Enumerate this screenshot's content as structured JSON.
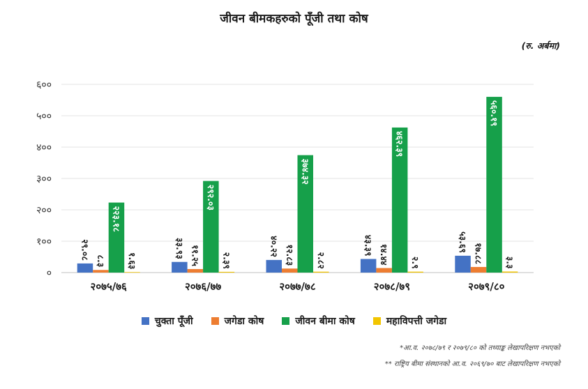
{
  "title": "जीवन बीमकहरुको पूँजी तथा कोष",
  "unit": "(रु. अर्बमा)",
  "chart_data": {
    "type": "bar",
    "title": "जीवन बीमकहरुको पूँजी तथा कोष",
    "ylim": [
      0,
      600
    ],
    "yticks": [
      0,
      100,
      200,
      300,
      400,
      500,
      600
    ],
    "ytick_labels": [
      "०",
      "१००",
      "२००",
      "३००",
      "४००",
      "५००",
      "६००"
    ],
    "grid": true,
    "legend_position": "bottom",
    "categories": [
      "२०७५/७६",
      "२०७६/७७",
      "२०७७/७८",
      "२०७८/७९",
      "२०७९/८०"
    ],
    "series": [
      {
        "name": "चुक्ता पूँजी",
        "color": "#4472C4",
        "values": [
          29.08,
          33.93,
          40.22,
          43.39,
          53.69
        ],
        "labels": [
          "२९.०८",
          "३३.९३",
          "४०.२२",
          "४३.३९",
          "५३.६९"
        ]
      },
      {
        "name": "जगेडा कोष",
        "color": "#ED7D31",
        "values": [
          8.3,
          11.25,
          12.83,
          14.44,
          17.88
        ],
        "labels": [
          "८.३",
          "११.२५",
          "१२.८३",
          "१४.४४",
          "१७.८८"
        ]
      },
      {
        "name": "जीवन बीमा कोष",
        "color": "#16A04A",
        "values": [
          223.18,
          292.03,
          374.32,
          462.39,
          560.19
        ],
        "labels": [
          "२२३.१८",
          "२९२.०३",
          "३७४.३२",
          "४६२.३९",
          "५६०.१९"
        ]
      },
      {
        "name": "महाविपत्ती जगेडा",
        "color": "#F2C500",
        "values": [
          1.63,
          2.39,
          2.82,
          2.9,
          3.3
        ],
        "labels": [
          "१.६३",
          "२.३९",
          "२.८२",
          "२.९",
          "३.३"
        ]
      }
    ]
  },
  "notes": {
    "note1": "*आ.व. २०७८/७९ र २०७९/८० को तथ्याङ्क लेखापरिक्षण नभएको",
    "note2": "** राष्ट्रिय बीमा संस्थानको आ.व. २०६९/७० बाट लेखापरिक्षण नभएको"
  }
}
